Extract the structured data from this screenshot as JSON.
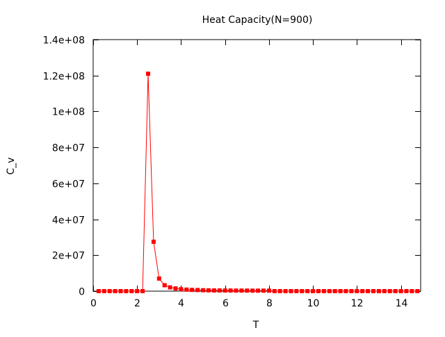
{
  "chart_data": {
    "type": "line",
    "title": "Heat Capacity(N=900)",
    "xlabel": "T",
    "ylabel": "C_v",
    "xlim": [
      0,
      14.9
    ],
    "ylim": [
      0,
      140000000
    ],
    "x_ticks": [
      0,
      2,
      4,
      6,
      8,
      10,
      12,
      14
    ],
    "x_tick_labels": [
      "0",
      "2",
      "4",
      "6",
      "8",
      "10",
      "12",
      "14"
    ],
    "y_ticks": [
      0,
      20000000,
      40000000,
      60000000,
      80000000,
      100000000,
      120000000,
      140000000
    ],
    "y_tick_labels": [
      "0",
      "2e+07",
      "4e+07",
      "6e+07",
      "8e+07",
      "1e+08",
      "1.2e+08",
      "1.4e+08"
    ],
    "grid": false,
    "legend": "none",
    "series": [
      {
        "color": "#ff0000",
        "marker": "square",
        "points": [
          [
            0.25,
            0
          ],
          [
            0.5,
            0
          ],
          [
            0.75,
            0
          ],
          [
            1.0,
            0
          ],
          [
            1.25,
            0
          ],
          [
            1.5,
            0
          ],
          [
            1.75,
            0
          ],
          [
            2.0,
            0
          ],
          [
            2.25,
            0
          ],
          [
            2.5,
            121000000
          ],
          [
            2.75,
            27500000
          ],
          [
            3.0,
            7000000
          ],
          [
            3.25,
            3300000
          ],
          [
            3.5,
            2100000
          ],
          [
            3.75,
            1500000
          ],
          [
            4.0,
            1100000
          ],
          [
            4.25,
            850000
          ],
          [
            4.5,
            700000
          ],
          [
            4.75,
            600000
          ],
          [
            5.0,
            500000
          ],
          [
            5.25,
            450000
          ],
          [
            5.5,
            400000
          ],
          [
            5.75,
            380000
          ],
          [
            6.0,
            360000
          ],
          [
            6.25,
            340000
          ],
          [
            6.5,
            320000
          ],
          [
            6.75,
            310000
          ],
          [
            7.0,
            300000
          ],
          [
            7.25,
            290000
          ],
          [
            7.5,
            280000
          ],
          [
            7.75,
            270000
          ],
          [
            8.0,
            260000
          ],
          [
            8.25,
            0
          ],
          [
            8.5,
            0
          ],
          [
            8.75,
            0
          ],
          [
            9.0,
            0
          ],
          [
            9.25,
            0
          ],
          [
            9.5,
            0
          ],
          [
            9.75,
            0
          ],
          [
            10.0,
            0
          ],
          [
            10.25,
            0
          ],
          [
            10.5,
            0
          ],
          [
            10.75,
            0
          ],
          [
            11.0,
            0
          ],
          [
            11.25,
            0
          ],
          [
            11.5,
            0
          ],
          [
            11.75,
            0
          ],
          [
            12.0,
            0
          ],
          [
            12.25,
            0
          ],
          [
            12.5,
            0
          ],
          [
            12.75,
            0
          ],
          [
            13.0,
            0
          ],
          [
            13.25,
            0
          ],
          [
            13.5,
            0
          ],
          [
            13.75,
            0
          ],
          [
            14.0,
            0
          ],
          [
            14.25,
            0
          ],
          [
            14.5,
            0
          ],
          [
            14.75,
            0
          ]
        ]
      }
    ]
  }
}
